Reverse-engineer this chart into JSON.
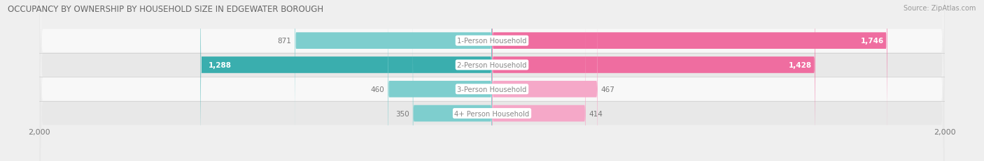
{
  "title": "OCCUPANCY BY OWNERSHIP BY HOUSEHOLD SIZE IN EDGEWATER BOROUGH",
  "source": "Source: ZipAtlas.com",
  "categories": [
    "1-Person Household",
    "2-Person Household",
    "3-Person Household",
    "4+ Person Household"
  ],
  "owner_values": [
    871,
    1288,
    460,
    350
  ],
  "renter_values": [
    1746,
    1428,
    467,
    414
  ],
  "max_val": 2000,
  "owner_color_dark": "#3AAEAE",
  "owner_color_light": "#7ECECE",
  "renter_color_dark": "#EF6DA0",
  "renter_color_light": "#F5A8C8",
  "bg_color": "#EFEFEF",
  "row_bg_light": "#F8F8F8",
  "row_bg_dark": "#E8E8E8",
  "title_color": "#666666",
  "source_color": "#999999",
  "label_color": "#777777",
  "center_label_color": "#888888",
  "owner_threshold": 1000,
  "renter_threshold": 1000
}
